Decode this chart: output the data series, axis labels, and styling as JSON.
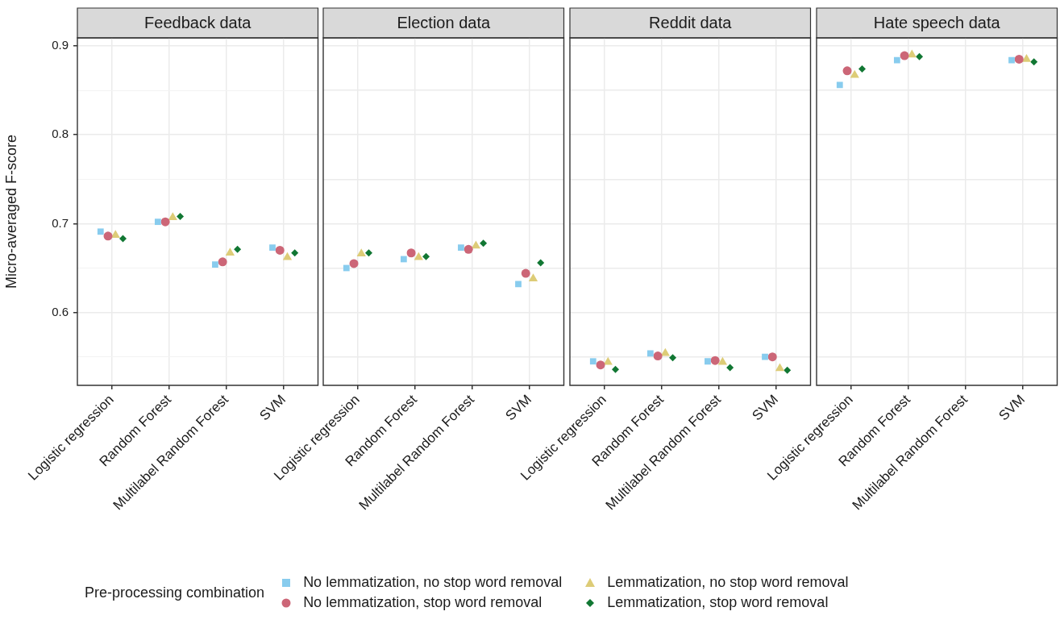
{
  "chart_data": [
    {
      "type": "scatter",
      "title": "Feedback data",
      "ylabel": "Micro-averaged F-score",
      "categories": [
        "Logistic regression",
        "Random Forest",
        "Multilabel Random Forest",
        "SVM"
      ],
      "ylim": [
        0.518,
        0.909
      ],
      "yticks": [
        {
          "value": 0.55,
          "label": null
        },
        0.6,
        {
          "value": 0.65,
          "label": null
        },
        0.7,
        {
          "value": 0.75,
          "label": null
        },
        0.8,
        {
          "value": 0.85,
          "label": null
        },
        0.9
      ],
      "grid": true,
      "legend": "bottom",
      "legend_title": "Pre-processing combination",
      "series": [
        {
          "name": "No lemmatization, no stop word removal",
          "color": "#88ccee",
          "marker": "square",
          "values": [
            0.691,
            0.702,
            0.654,
            0.673
          ]
        },
        {
          "name": "No lemmatization, stop word removal",
          "color": "#cc6677",
          "marker": "circle",
          "values": [
            0.686,
            0.702,
            0.657,
            0.67
          ]
        },
        {
          "name": "Lemmatization, no stop word removal",
          "color": "#ddcc77",
          "marker": "triangle",
          "values": [
            0.687,
            0.707,
            0.667,
            0.662
          ]
        },
        {
          "name": "Lemmatization, stop word removal",
          "color": "#117733",
          "marker": "diamond",
          "values": [
            0.683,
            0.708,
            0.671,
            0.667
          ]
        }
      ]
    },
    {
      "type": "scatter",
      "title": "Election data",
      "categories": [
        "Logistic regression",
        "Random Forest",
        "Multilabel Random Forest",
        "SVM"
      ],
      "ylim": [
        0.518,
        0.909
      ],
      "yticks": [
        {
          "value": 0.55,
          "label": null
        },
        {
          "value": 0.6,
          "label": null
        },
        {
          "value": 0.65,
          "label": null
        },
        {
          "value": 0.7,
          "label": null
        },
        {
          "value": 0.75,
          "label": null
        },
        {
          "value": 0.8,
          "label": null
        },
        {
          "value": 0.85,
          "label": null
        },
        {
          "value": 0.9,
          "label": null
        }
      ],
      "grid": true,
      "tick_labels": "x",
      "series": [
        {
          "color": "#88ccee",
          "marker": "square",
          "values": [
            0.65,
            0.66,
            0.673,
            0.632
          ]
        },
        {
          "color": "#cc6677",
          "marker": "circle",
          "values": [
            0.655,
            0.667,
            0.671,
            0.644
          ]
        },
        {
          "color": "#ddcc77",
          "marker": "triangle",
          "values": [
            0.666,
            0.662,
            0.675,
            0.638
          ]
        },
        {
          "color": "#117733",
          "marker": "diamond",
          "values": [
            0.667,
            0.663,
            0.678,
            0.656
          ]
        }
      ]
    },
    {
      "type": "scatter",
      "title": "Reddit data",
      "categories": [
        "Logistic regression",
        "Random Forest",
        "Multilabel Random Forest",
        "SVM"
      ],
      "ylim": [
        0.518,
        0.909
      ],
      "yticks": [
        {
          "value": 0.55,
          "label": null
        },
        {
          "value": 0.6,
          "label": null
        },
        {
          "value": 0.65,
          "label": null
        },
        {
          "value": 0.7,
          "label": null
        },
        {
          "value": 0.75,
          "label": null
        },
        {
          "value": 0.8,
          "label": null
        },
        {
          "value": 0.85,
          "label": null
        },
        {
          "value": 0.9,
          "label": null
        }
      ],
      "grid": true,
      "tick_labels": "x",
      "series": [
        {
          "color": "#88ccee",
          "marker": "square",
          "values": [
            0.545,
            0.554,
            0.545,
            0.55
          ]
        },
        {
          "color": "#cc6677",
          "marker": "circle",
          "values": [
            0.541,
            0.551,
            0.546,
            0.55
          ]
        },
        {
          "color": "#ddcc77",
          "marker": "triangle",
          "values": [
            0.544,
            0.554,
            0.544,
            0.537
          ]
        },
        {
          "color": "#117733",
          "marker": "diamond",
          "values": [
            0.536,
            0.549,
            0.538,
            0.535
          ]
        }
      ]
    },
    {
      "type": "scatter",
      "title": "Hate speech data",
      "categories": [
        "Logistic regression",
        "Random Forest",
        "Multilabel Random Forest",
        "SVM"
      ],
      "ylim": [
        0.518,
        0.909
      ],
      "yticks": [
        {
          "value": 0.55,
          "label": null
        },
        {
          "value": 0.6,
          "label": null
        },
        {
          "value": 0.65,
          "label": null
        },
        {
          "value": 0.7,
          "label": null
        },
        {
          "value": 0.75,
          "label": null
        },
        {
          "value": 0.8,
          "label": null
        },
        {
          "value": 0.85,
          "label": null
        },
        {
          "value": 0.9,
          "label": null
        }
      ],
      "grid": true,
      "tick_labels": "x",
      "series": [
        {
          "color": "#88ccee",
          "marker": "square",
          "values": [
            0.856,
            0.884,
            null,
            0.884
          ]
        },
        {
          "color": "#cc6677",
          "marker": "circle",
          "values": [
            0.872,
            0.889,
            null,
            0.885
          ]
        },
        {
          "color": "#ddcc77",
          "marker": "triangle",
          "values": [
            0.867,
            0.89,
            null,
            0.885
          ]
        },
        {
          "color": "#117733",
          "marker": "diamond",
          "values": [
            0.874,
            0.888,
            null,
            0.882
          ]
        }
      ]
    }
  ]
}
